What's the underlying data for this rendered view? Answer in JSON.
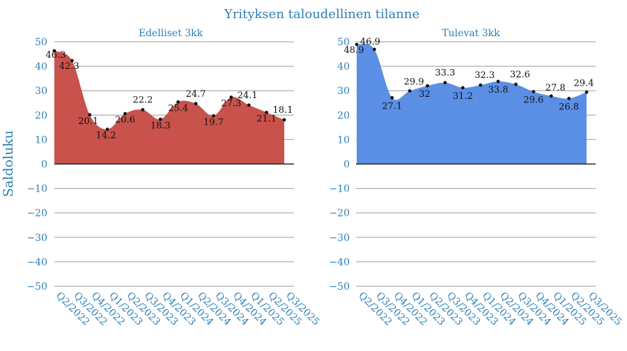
{
  "title": "Yrityksen taloudellinen tilanne",
  "ylabel": "Saldoluku",
  "chart_data": [
    {
      "type": "area",
      "title": "Edelliset 3kk",
      "color": "#c9524c",
      "categories": [
        "Q2/2022",
        "Q3/2022",
        "Q4/2022",
        "Q1/2023",
        "Q2/2023",
        "Q3/2023",
        "Q4/2023",
        "Q1/2024",
        "Q2/2024",
        "Q3/2024",
        "Q4/2024",
        "Q1/2025",
        "Q2/2025",
        "Q3/2025"
      ],
      "values": [
        46.3,
        42.3,
        20.1,
        14.2,
        20.6,
        22.2,
        18.3,
        25.4,
        24.7,
        19.7,
        27.3,
        24.1,
        21.1,
        18.1
      ],
      "ylim": [
        -50,
        50
      ],
      "yticks": [
        50,
        40,
        30,
        20,
        10,
        0,
        -10,
        -20,
        -30,
        -40,
        -50
      ],
      "ytick_labels": [
        "50",
        "40",
        "30",
        "20",
        "10",
        "0",
        "−10",
        "−20",
        "−30",
        "−40",
        "−50"
      ],
      "grid": true
    },
    {
      "type": "area",
      "title": "Tulevat 3kk",
      "color": "#5b8fe6",
      "categories": [
        "Q2/2022",
        "Q3/2022",
        "Q4/2022",
        "Q1/2023",
        "Q2/2023",
        "Q3/2023",
        "Q4/2023",
        "Q1/2024",
        "Q2/2024",
        "Q3/2024",
        "Q4/2024",
        "Q1/2025",
        "Q2/2025",
        "Q3/2025"
      ],
      "values": [
        48.9,
        46.9,
        27.1,
        29.9,
        32,
        33.3,
        31.2,
        32.3,
        33.8,
        32.6,
        29.6,
        27.8,
        26.8,
        29.4
      ],
      "ylim": [
        -50,
        50
      ],
      "yticks": [
        50,
        40,
        30,
        20,
        10,
        0,
        -10,
        -20,
        -30,
        -40,
        -50
      ],
      "ytick_labels": [
        "50",
        "40",
        "30",
        "20",
        "10",
        "0",
        "−10",
        "−20",
        "−30",
        "−40",
        "−50"
      ],
      "grid": true
    }
  ]
}
